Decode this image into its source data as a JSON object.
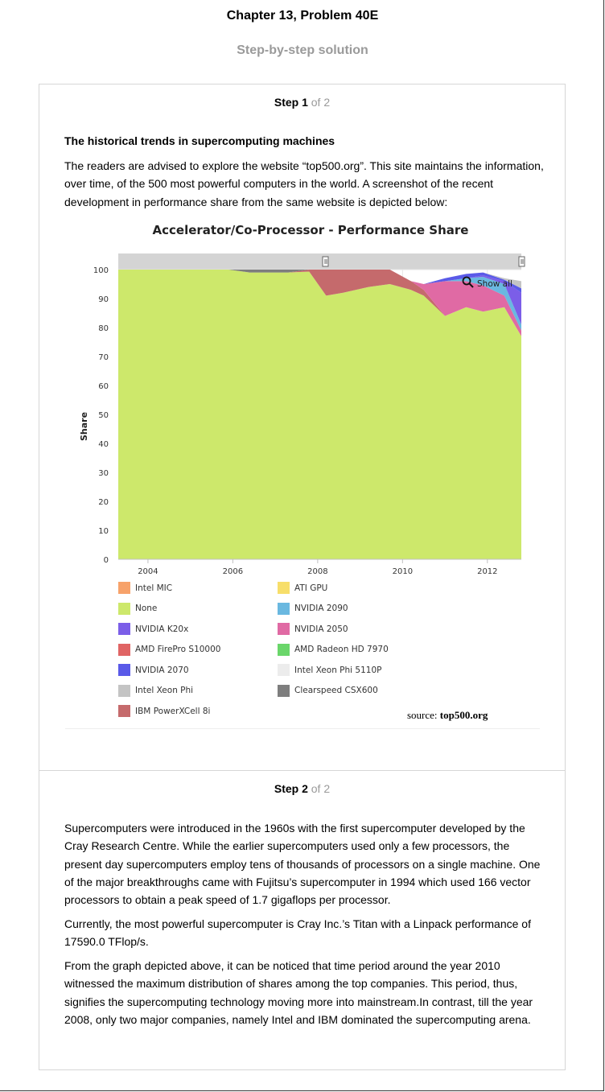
{
  "header": {
    "chapter": "Chapter 13, Problem 40E",
    "subtitle": "Step-by-step solution"
  },
  "step1": {
    "label": "Step 1",
    "of": "of 2",
    "title": "The historical trends in supercomputing machines",
    "paragraph": "The readers are advised to explore the website “top500.org”. This site maintains the information, over time, of the 500 most powerful computers in the world. A screenshot of the recent development in performance share from the same website is depicted below:"
  },
  "step2": {
    "label": "Step 2",
    "of": "of 2",
    "paragraphs": [
      "Supercomputers were introduced in the 1960s with the first supercomputer developed by the Cray Research Centre. While the earlier supercomputers used only a few processors, the present day supercomputers employ tens of thousands of processors on a single machine. One of the major breakthroughs came with Fujitsu’s supercomputer in 1994 which used 166 vector processors to obtain a peak speed of 1.7 gigaflops per processor.",
      "Currently, the most powerful supercomputer is Cray Inc.’s Titan with a Linpack performance of 17590.0 TFlop/s.",
      "From the graph depicted above, it can be noticed that time period around the year 2010 witnessed the maximum distribution of shares among the top companies. This period, thus, signifies the supercomputing technology moving more into mainstream.In contrast, till the year 2008, only two major companies, namely Intel and IBM dominated the supercomputing arena."
    ]
  },
  "figure": {
    "show_all": "Show all",
    "source_prefix": "source:",
    "source_site": "top500.org"
  },
  "chart_data": {
    "type": "area",
    "stacked": true,
    "title": "Accelerator/Co-Processor - Performance Share",
    "xlabel": "",
    "ylabel": "Share",
    "xlim": [
      2003.3,
      2012.8
    ],
    "ylim": [
      0,
      100
    ],
    "yticks": [
      0,
      10,
      20,
      30,
      40,
      50,
      60,
      70,
      80,
      90,
      100
    ],
    "xticks": [
      "2004",
      "2006",
      "2008",
      "2010",
      "2012"
    ],
    "x": [
      2003.3,
      2005.9,
      2006.4,
      2007.3,
      2007.8,
      2008.2,
      2008.6,
      2009.2,
      2009.7,
      2010.2,
      2010.5,
      2011.0,
      2011.5,
      2011.9,
      2012.4,
      2012.8
    ],
    "series": [
      {
        "name": "None",
        "color": "#cde86b",
        "values": [
          100,
          100,
          99,
          99,
          99.3,
          91,
          92,
          94,
          95,
          93,
          91,
          84,
          87,
          85.5,
          87,
          77
        ]
      },
      {
        "name": "IBM PowerXCell 8i",
        "color": "#c56a6c",
        "values": [
          0,
          0,
          0,
          0,
          0.7,
          9,
          8,
          6,
          5,
          3,
          2,
          0,
          0,
          0,
          0,
          0
        ]
      },
      {
        "name": "NVIDIA 2050",
        "color": "#e06aa4",
        "values": [
          0,
          0,
          0,
          0,
          0,
          0,
          0,
          0,
          0,
          0,
          2,
          12,
          9,
          9,
          4,
          2
        ]
      },
      {
        "name": "NVIDIA 2090",
        "color": "#6ab8e0",
        "values": [
          0,
          0,
          0,
          0,
          0,
          0,
          0,
          0,
          0,
          0,
          0,
          0,
          1,
          3,
          4,
          2
        ]
      },
      {
        "name": "NVIDIA K20x",
        "color": "#7b5ee8",
        "values": [
          0,
          0,
          0,
          0,
          0,
          0,
          0,
          0,
          0,
          0,
          0,
          0,
          0,
          0.5,
          1,
          11
        ]
      },
      {
        "name": "NVIDIA 2070",
        "color": "#5a5ae8",
        "values": [
          0,
          0,
          0,
          0,
          0,
          0,
          0,
          0,
          0,
          0,
          0,
          1,
          1.5,
          1,
          0.5,
          1.5
        ]
      },
      {
        "name": "Intel Xeon Phi",
        "color": "#c4c4c4",
        "values": [
          0,
          0,
          0,
          0,
          0,
          0,
          0,
          0,
          0,
          0,
          0,
          0,
          0,
          0,
          0.5,
          2.5
        ]
      },
      {
        "name": "Clearspeed CSX600",
        "color": "#7e7e7e",
        "values": [
          0,
          0,
          1,
          1,
          0,
          0,
          0,
          0,
          0,
          0,
          0,
          0,
          0,
          0,
          0,
          0
        ]
      }
    ],
    "legend": [
      {
        "name": "Intel MIC",
        "color": "#f7a26a"
      },
      {
        "name": "ATI GPU",
        "color": "#f7de6a"
      },
      {
        "name": "None",
        "color": "#cde86b"
      },
      {
        "name": "NVIDIA 2090",
        "color": "#6ab8e0"
      },
      {
        "name": "NVIDIA K20x",
        "color": "#7b5ee8"
      },
      {
        "name": "NVIDIA 2050",
        "color": "#e06aa4"
      },
      {
        "name": "AMD FirePro S10000",
        "color": "#e06464"
      },
      {
        "name": "AMD Radeon HD 7970",
        "color": "#6ad66a"
      },
      {
        "name": "NVIDIA 2070",
        "color": "#5a5ae8"
      },
      {
        "name": "Intel Xeon Phi 5110P",
        "color": "#ececec"
      },
      {
        "name": "Intel Xeon Phi",
        "color": "#c4c4c4"
      },
      {
        "name": "Clearspeed CSX600",
        "color": "#7e7e7e"
      },
      {
        "name": "IBM PowerXCell 8i",
        "color": "#c56a6c"
      }
    ],
    "legend_position": "bottom",
    "grid": true
  }
}
